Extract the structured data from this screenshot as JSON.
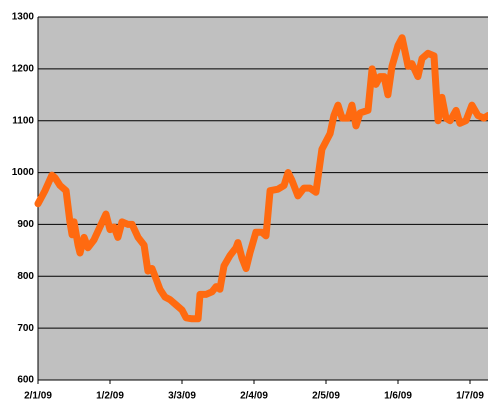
{
  "chart_data": {
    "type": "line",
    "x": [
      0,
      2.9,
      5.8,
      7.1,
      9.2,
      11.7,
      13.3,
      14.2,
      15,
      16.7,
      17.5,
      19.2,
      20.8,
      23.3,
      25.8,
      28.3,
      30,
      31.7,
      33.3,
      35,
      37.5,
      39.2,
      41.7,
      44.2,
      45.8,
      47.5,
      49.2,
      50.8,
      52.9,
      55,
      57.5,
      60,
      61.7,
      64.2,
      66.7,
      67.5,
      70,
      72.5,
      74.2,
      75.8,
      77.5,
      80,
      82.5,
      83.3,
      85,
      86.7,
      88.3,
      90.8,
      93.3,
      95,
      96.7,
      100,
      102.5,
      104.2,
      105.8,
      108.3,
      110.8,
      113.3,
      115.8,
      118.3,
      121.7,
      123.3,
      125,
      126.7,
      129.2,
      130.8,
      132.5,
      134.2,
      137.5,
      139.2,
      140.8,
      142.5,
      144.2,
      145.8,
      147.5,
      150,
      151.7,
      153.3,
      154.2,
      155.8,
      158.3,
      160,
      162.5,
      165,
      166.7,
      168.3,
      170,
      171.7,
      174.2,
      175.8,
      178.3,
      180.8,
      183.3,
      185.8,
      187.5
    ],
    "values": [
      940,
      965,
      995,
      990,
      975,
      965,
      905,
      880,
      905,
      860,
      845,
      875,
      855,
      870,
      895,
      920,
      890,
      895,
      875,
      905,
      900,
      900,
      875,
      860,
      810,
      815,
      795,
      775,
      760,
      755,
      745,
      735,
      720,
      718,
      718,
      765,
      765,
      770,
      780,
      775,
      820,
      840,
      855,
      865,
      835,
      815,
      845,
      885,
      885,
      878,
      965,
      968,
      975,
      1000,
      985,
      955,
      970,
      970,
      962,
      1045,
      1075,
      1110,
      1130,
      1105,
      1105,
      1130,
      1090,
      1115,
      1120,
      1200,
      1170,
      1185,
      1185,
      1150,
      1205,
      1245,
      1260,
      1225,
      1205,
      1210,
      1185,
      1220,
      1230,
      1225,
      1100,
      1145,
      1105,
      1100,
      1120,
      1095,
      1100,
      1130,
      1110,
      1105,
      1110
    ],
    "color": "#ff6a10",
    "xlim": [
      0,
      187.5
    ],
    "xticks": [
      {
        "value": 0,
        "label": "2/1/09"
      },
      {
        "value": 30,
        "label": "1/2/09"
      },
      {
        "value": 60,
        "label": "3/3/09"
      },
      {
        "value": 90,
        "label": "2/4/09"
      },
      {
        "value": 120,
        "label": "2/5/09"
      },
      {
        "value": 150,
        "label": "1/6/09"
      },
      {
        "value": 180,
        "label": "1/7/09"
      }
    ],
    "ylim": [
      600,
      1300
    ],
    "yticks": [
      600,
      700,
      800,
      900,
      1000,
      1100,
      1200,
      1300
    ],
    "grid": true
  }
}
